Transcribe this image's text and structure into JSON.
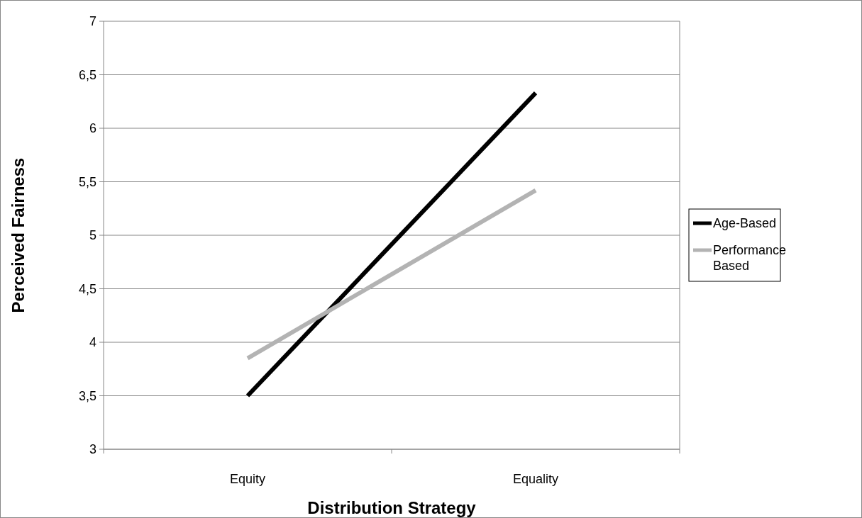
{
  "chart_data": {
    "type": "line",
    "xlabel": "Distribution Strategy",
    "ylabel": "Perceived Fairness",
    "categories": [
      "Equity",
      "Equality"
    ],
    "series": [
      {
        "name": "Age-Based",
        "color": "#000000",
        "values": [
          3.5,
          6.33
        ]
      },
      {
        "name": "Performance Based",
        "color": "#b3b3b3",
        "values": [
          3.85,
          5.42
        ]
      }
    ],
    "ylim": [
      3,
      7
    ],
    "yticks": [
      3,
      {
        "value": 3.5,
        "label": "3,5"
      },
      4,
      {
        "value": 4.5,
        "label": "4,5"
      },
      5,
      {
        "value": 5.5,
        "label": "5,5"
      },
      6,
      {
        "value": 6.5,
        "label": "6,5"
      },
      7
    ],
    "grid": "y",
    "legend": "right",
    "marker": "none",
    "line_style": "solid"
  }
}
